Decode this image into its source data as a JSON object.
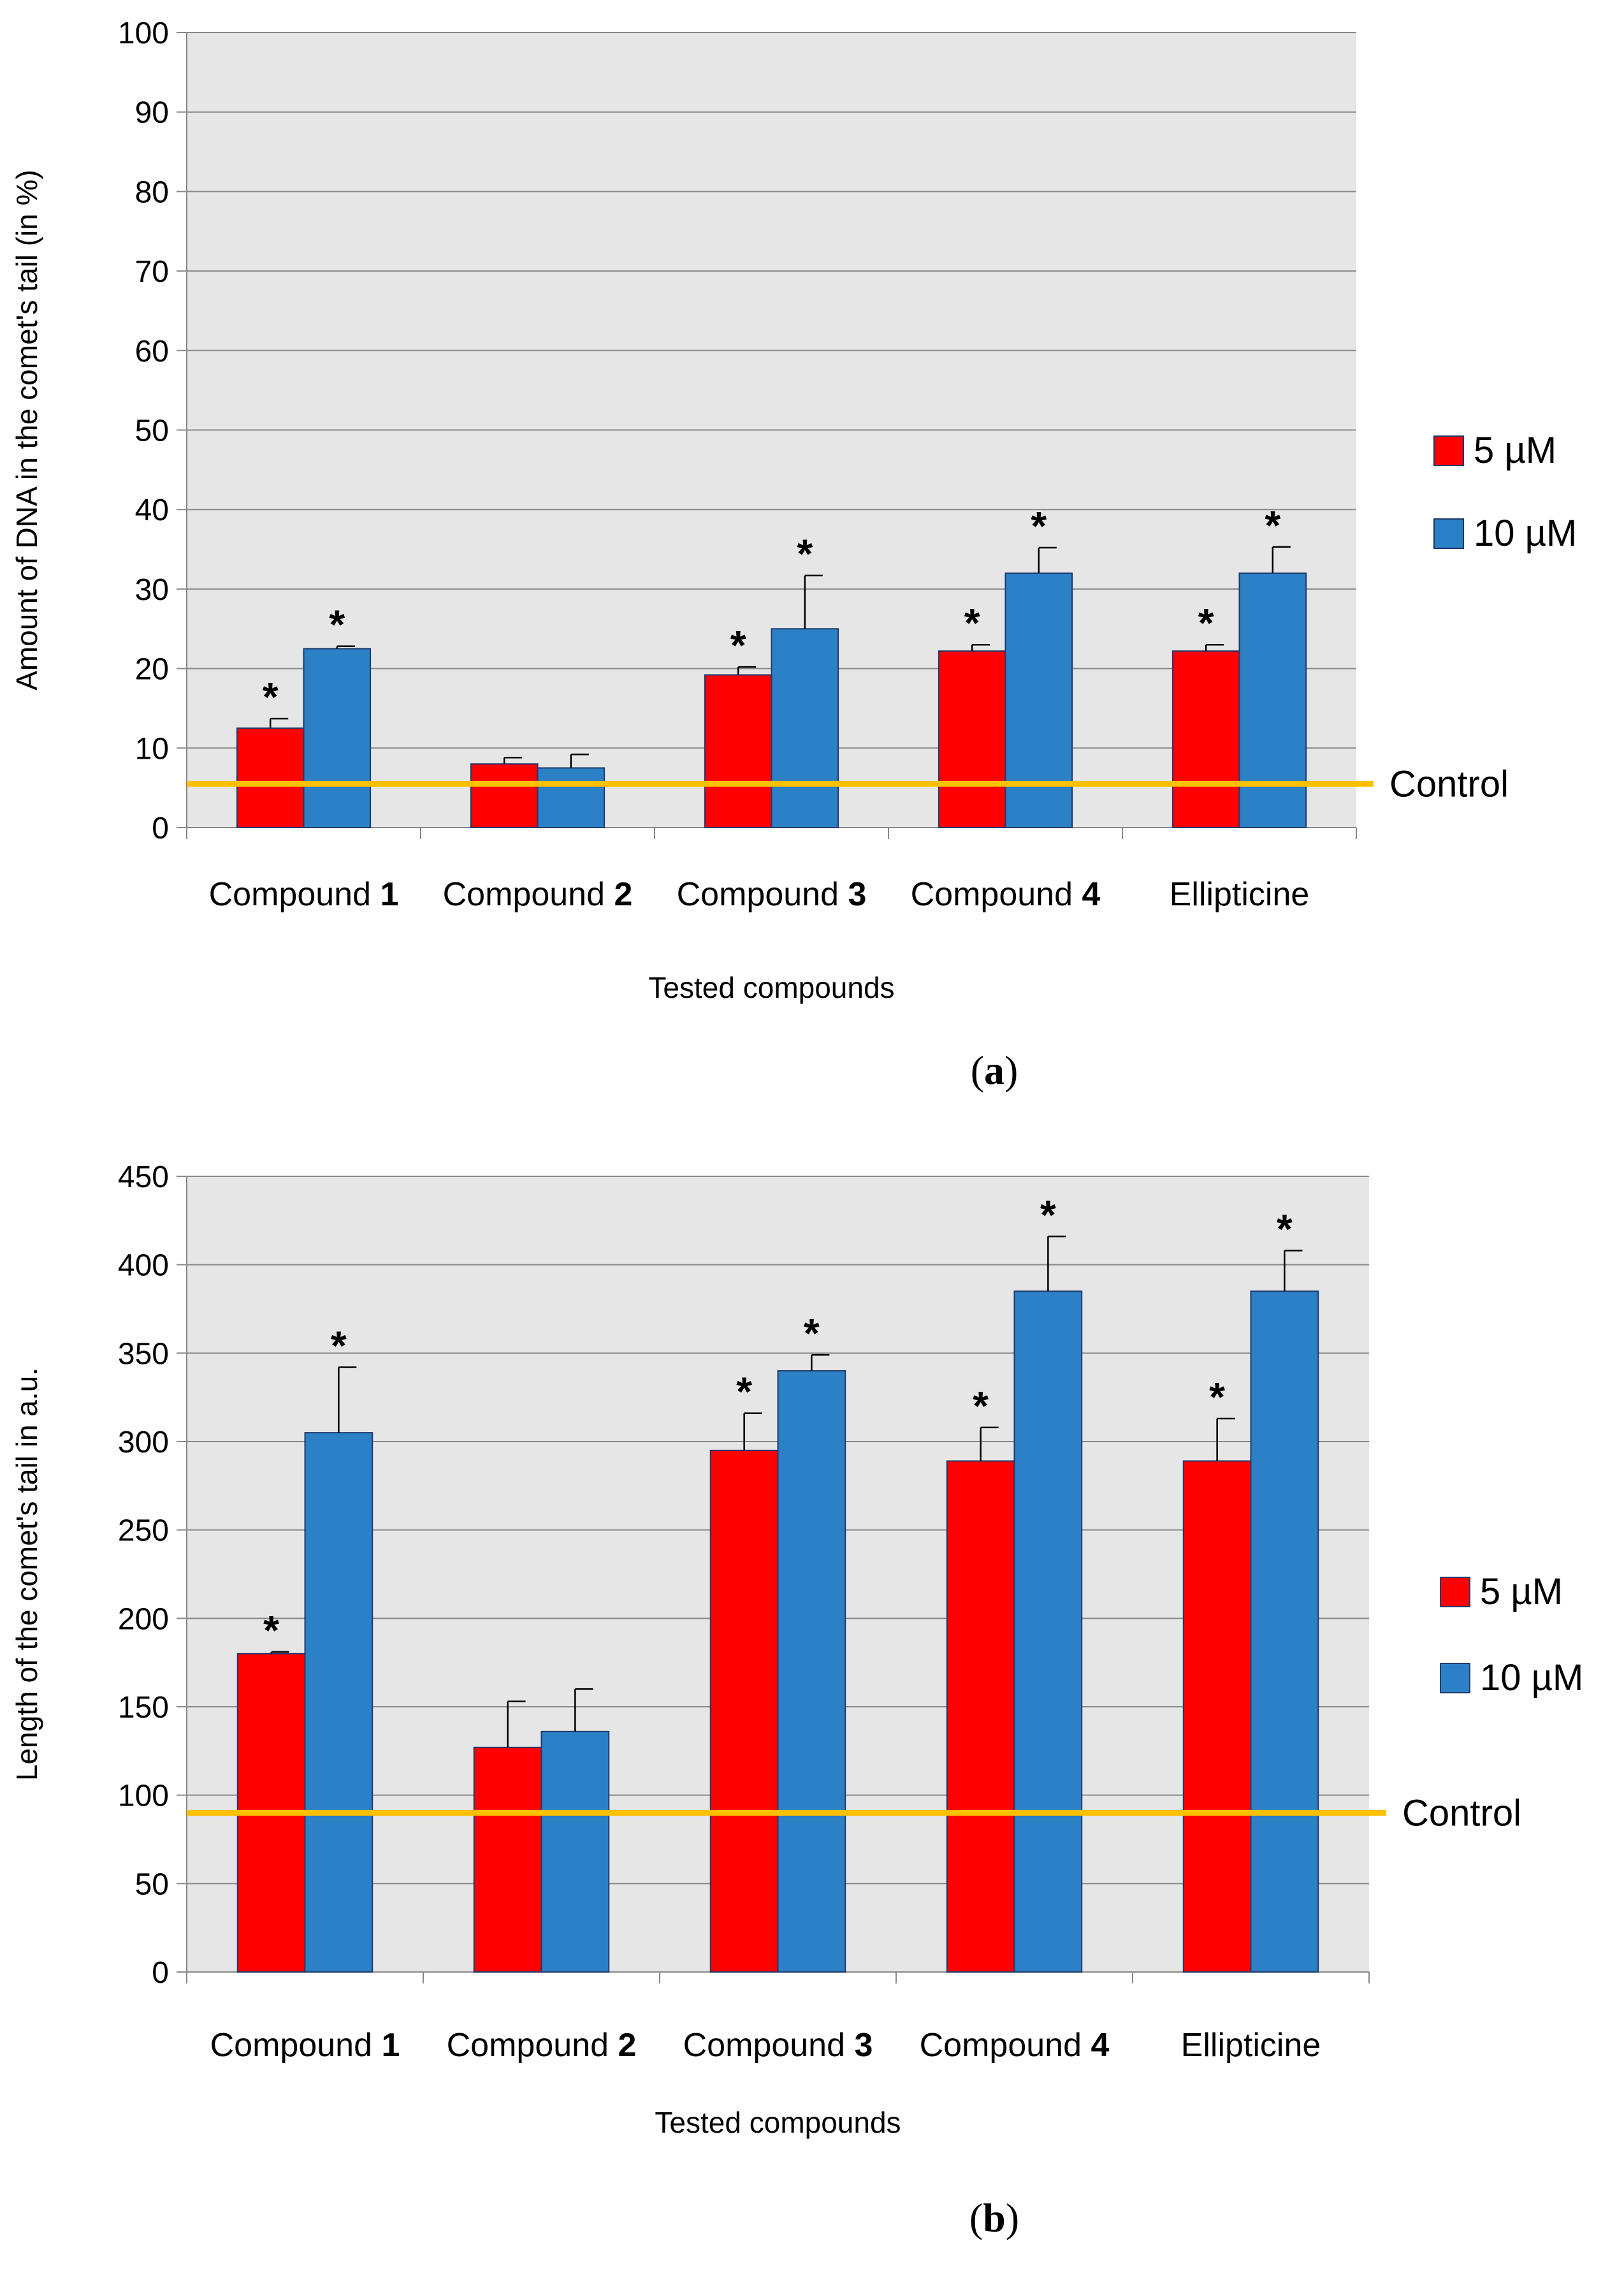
{
  "chart_data": [
    {
      "type": "bar",
      "panel_label": "(a)",
      "xlabel": "Tested compounds",
      "ylabel": "Amount of DNA in the comet's tail (in %)",
      "ylim": [
        0,
        100
      ],
      "yticks": [
        0,
        10,
        20,
        30,
        40,
        50,
        60,
        70,
        80,
        90,
        100
      ],
      "grid": true,
      "legend_position": "right",
      "categories": [
        "Compound 1",
        "Compound 2",
        "Compound 3",
        "Compound 4",
        "Ellipticine"
      ],
      "series": [
        {
          "name": "5 µM",
          "color": "#ff0000",
          "values": [
            12.5,
            8,
            19.2,
            22.2,
            22.2
          ],
          "errors": [
            1.2,
            0.8,
            1.0,
            0.8,
            0.8
          ],
          "significant": [
            true,
            false,
            true,
            true,
            true
          ]
        },
        {
          "name": "10 µM",
          "color": "#2c80c5",
          "values": [
            22.5,
            7.5,
            25,
            32,
            32
          ],
          "errors": [
            0.3,
            1.7,
            6.7,
            3.2,
            3.3
          ],
          "significant": [
            true,
            false,
            true,
            true,
            true
          ]
        }
      ],
      "control": {
        "label": "Control",
        "value": 5.5,
        "color": "#ffc000"
      },
      "significance_marker": "*"
    },
    {
      "type": "bar",
      "panel_label": "(b)",
      "xlabel": "Tested compounds",
      "ylabel": "Length of the comet's tail in a.u.",
      "ylim": [
        0,
        450
      ],
      "yticks": [
        0,
        50,
        100,
        150,
        200,
        250,
        300,
        350,
        400,
        450
      ],
      "grid": true,
      "legend_position": "right",
      "categories": [
        "Compound 1",
        "Compound 2",
        "Compound 3",
        "Compound 4",
        "Ellipticine"
      ],
      "series": [
        {
          "name": "5 µM",
          "color": "#ff0000",
          "values": [
            180,
            127,
            295,
            289,
            289
          ],
          "errors": [
            1,
            26,
            21,
            19,
            24
          ],
          "significant": [
            true,
            false,
            true,
            true,
            true
          ]
        },
        {
          "name": "10 µM",
          "color": "#2c80c5",
          "values": [
            305,
            136,
            340,
            385,
            385
          ],
          "errors": [
            37,
            24,
            9,
            31,
            23
          ],
          "significant": [
            true,
            false,
            true,
            true,
            true
          ]
        }
      ],
      "control": {
        "label": "Control",
        "value": 90,
        "color": "#ffc000"
      },
      "significance_marker": "*"
    }
  ]
}
